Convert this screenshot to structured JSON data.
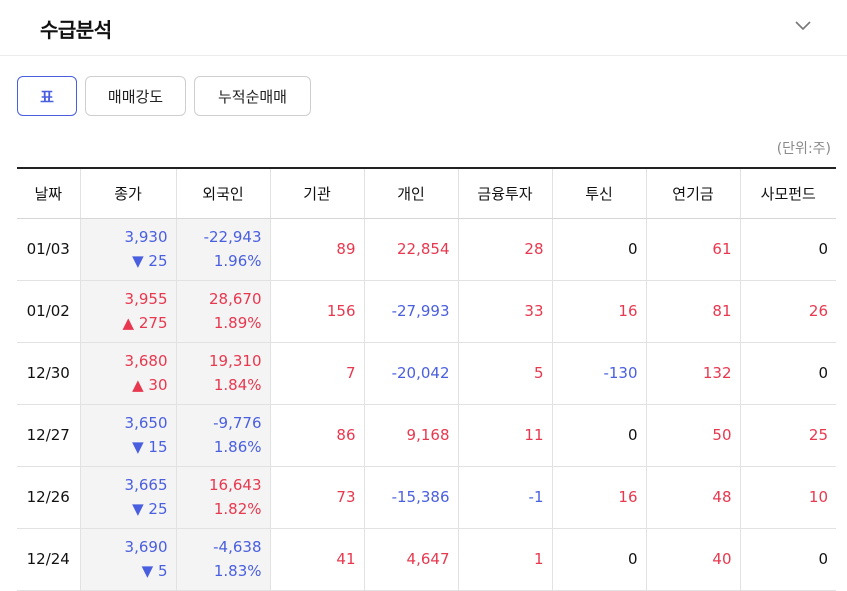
{
  "header": {
    "title": "수급분석"
  },
  "tabs": [
    {
      "label": "표",
      "active": true
    },
    {
      "label": "매매강도",
      "active": false
    },
    {
      "label": "누적순매매",
      "active": false
    }
  ],
  "unit": "(단위:주)",
  "columns": [
    "날짜",
    "종가",
    "외국인",
    "기관",
    "개인",
    "금융투자",
    "투신",
    "연기금",
    "사모펀드"
  ],
  "colors": {
    "up": "#e8384f",
    "down": "#4a5fe0",
    "accent": "#4a5fe0"
  },
  "rows": [
    {
      "date": "01/03",
      "close": "3,930",
      "change": "25",
      "change_dir": "down",
      "foreign": "-22,943",
      "foreign_ratio": "1.96%",
      "institution": "89",
      "individual": "22,854",
      "fin_invest": "28",
      "trust": "0",
      "pension": "61",
      "private_fund": "0"
    },
    {
      "date": "01/02",
      "close": "3,955",
      "change": "275",
      "change_dir": "up",
      "foreign": "28,670",
      "foreign_ratio": "1.89%",
      "institution": "156",
      "individual": "-27,993",
      "fin_invest": "33",
      "trust": "16",
      "pension": "81",
      "private_fund": "26"
    },
    {
      "date": "12/30",
      "close": "3,680",
      "change": "30",
      "change_dir": "up",
      "foreign": "19,310",
      "foreign_ratio": "1.84%",
      "institution": "7",
      "individual": "-20,042",
      "fin_invest": "5",
      "trust": "-130",
      "pension": "132",
      "private_fund": "0"
    },
    {
      "date": "12/27",
      "close": "3,650",
      "change": "15",
      "change_dir": "down",
      "foreign": "-9,776",
      "foreign_ratio": "1.86%",
      "institution": "86",
      "individual": "9,168",
      "fin_invest": "11",
      "trust": "0",
      "pension": "50",
      "private_fund": "25"
    },
    {
      "date": "12/26",
      "close": "3,665",
      "change": "25",
      "change_dir": "down",
      "foreign": "16,643",
      "foreign_ratio": "1.82%",
      "institution": "73",
      "individual": "-15,386",
      "fin_invest": "-1",
      "trust": "16",
      "pension": "48",
      "private_fund": "10"
    },
    {
      "date": "12/24",
      "close": "3,690",
      "change": "5",
      "change_dir": "down",
      "foreign": "-4,638",
      "foreign_ratio": "1.83%",
      "institution": "41",
      "individual": "4,647",
      "fin_invest": "1",
      "trust": "0",
      "pension": "40",
      "private_fund": "0"
    }
  ]
}
